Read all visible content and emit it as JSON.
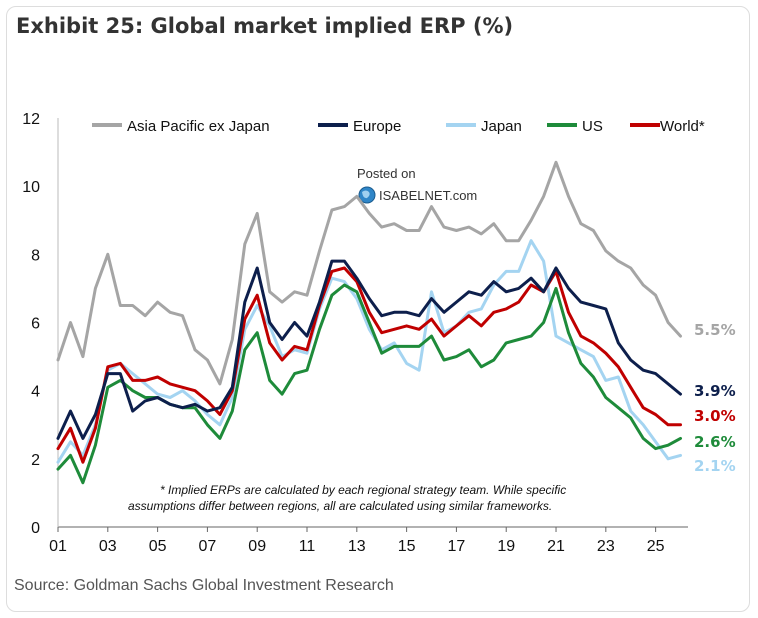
{
  "title": "Exhibit 25: Global market implied ERP (%)",
  "source": "Source: Goldman Sachs Global Investment Research",
  "watermark": {
    "line1": "Posted on",
    "line2": "ISABELNET.com"
  },
  "footnote": {
    "line1": "* Implied ERPs are calculated by each regional strategy team. While specific",
    "line2": "assumptions differ between regions, all are calculated using similar frameworks."
  },
  "chart_data": {
    "type": "line",
    "title": "Global market implied ERP (%)",
    "xlabel": "",
    "ylabel": "",
    "xlim": [
      2001,
      2026.3
    ],
    "ylim": [
      0,
      12
    ],
    "y_ticks": [
      0,
      2,
      4,
      6,
      8,
      10,
      12
    ],
    "x_ticks": [
      {
        "value": 2001,
        "label": "01"
      },
      {
        "value": 2003,
        "label": "03"
      },
      {
        "value": 2005,
        "label": "05"
      },
      {
        "value": 2007,
        "label": "07"
      },
      {
        "value": 2009,
        "label": "09"
      },
      {
        "value": 2011,
        "label": "11"
      },
      {
        "value": 2013,
        "label": "13"
      },
      {
        "value": 2015,
        "label": "15"
      },
      {
        "value": 2017,
        "label": "17"
      },
      {
        "value": 2019,
        "label": "19"
      },
      {
        "value": 2021,
        "label": "21"
      },
      {
        "value": 2023,
        "label": "23"
      },
      {
        "value": 2025,
        "label": "25"
      }
    ],
    "x": [
      2001.0,
      2001.5,
      2002.0,
      2002.5,
      2003.0,
      2003.5,
      2004.0,
      2004.5,
      2005.0,
      2005.5,
      2006.0,
      2006.5,
      2007.0,
      2007.5,
      2008.0,
      2008.5,
      2009.0,
      2009.5,
      2010.0,
      2010.5,
      2011.0,
      2011.5,
      2012.0,
      2012.5,
      2013.0,
      2013.5,
      2014.0,
      2014.5,
      2015.0,
      2015.5,
      2016.0,
      2016.5,
      2017.0,
      2017.5,
      2018.0,
      2018.5,
      2019.0,
      2019.5,
      2020.0,
      2020.5,
      2021.0,
      2021.5,
      2022.0,
      2022.5,
      2023.0,
      2023.5,
      2024.0,
      2024.5,
      2025.0,
      2025.5,
      2026.0
    ],
    "series": [
      {
        "name": "Asia Pacific ex Japan",
        "color": "#a5a5a5",
        "end_label": "5.5%",
        "values": [
          4.9,
          6.0,
          5.0,
          7.0,
          8.0,
          6.5,
          6.5,
          6.2,
          6.6,
          6.3,
          6.2,
          5.2,
          4.9,
          4.2,
          5.5,
          8.3,
          9.2,
          6.9,
          6.6,
          6.9,
          6.8,
          8.1,
          9.3,
          9.4,
          9.7,
          9.2,
          8.8,
          8.9,
          8.7,
          8.7,
          9.4,
          8.8,
          8.7,
          8.8,
          8.6,
          8.9,
          8.4,
          8.4,
          9.0,
          9.7,
          10.7,
          9.7,
          8.9,
          8.7,
          8.1,
          7.8,
          7.6,
          7.1,
          6.8,
          6.0,
          5.6
        ]
      },
      {
        "name": "Europe",
        "color": "#0d1f4c",
        "end_label": "3.9%",
        "values": [
          2.6,
          3.4,
          2.6,
          3.3,
          4.5,
          4.5,
          3.4,
          3.7,
          3.8,
          3.6,
          3.5,
          3.6,
          3.4,
          3.5,
          4.1,
          6.6,
          7.6,
          6.0,
          5.5,
          6.0,
          5.6,
          6.6,
          7.8,
          7.8,
          7.3,
          6.7,
          6.2,
          6.3,
          6.3,
          6.2,
          6.7,
          6.3,
          6.6,
          6.9,
          6.8,
          7.2,
          6.9,
          7.0,
          7.3,
          6.9,
          7.6,
          7.0,
          6.6,
          6.5,
          6.4,
          5.4,
          4.9,
          4.6,
          4.5,
          4.2,
          3.9
        ]
      },
      {
        "name": "Japan",
        "color": "#a4d4f1",
        "end_label": "2.1%",
        "values": [
          1.9,
          2.5,
          2.1,
          3.0,
          4.6,
          4.8,
          4.5,
          4.2,
          3.9,
          3.8,
          4.0,
          3.7,
          3.3,
          3.0,
          3.8,
          5.8,
          6.5,
          5.9,
          5.0,
          5.2,
          5.1,
          6.4,
          7.3,
          7.2,
          6.7,
          5.8,
          5.2,
          5.4,
          4.8,
          4.6,
          6.9,
          5.7,
          5.9,
          6.3,
          6.4,
          7.1,
          7.5,
          7.5,
          8.4,
          7.8,
          5.6,
          5.4,
          5.2,
          5.0,
          4.3,
          4.4,
          3.4,
          3.0,
          2.5,
          2.0,
          2.1
        ]
      },
      {
        "name": "US",
        "color": "#1e8b3a",
        "end_label": "2.6%",
        "values": [
          1.7,
          2.1,
          1.3,
          2.4,
          4.1,
          4.3,
          4.0,
          3.8,
          3.8,
          3.6,
          3.5,
          3.5,
          3.0,
          2.6,
          3.4,
          5.2,
          5.7,
          4.3,
          3.9,
          4.5,
          4.6,
          5.8,
          6.8,
          7.1,
          6.9,
          6.0,
          5.1,
          5.3,
          5.3,
          5.3,
          5.6,
          4.9,
          5.0,
          5.2,
          4.7,
          4.9,
          5.4,
          5.5,
          5.6,
          6.0,
          7.0,
          5.7,
          4.8,
          4.4,
          3.8,
          3.5,
          3.2,
          2.6,
          2.3,
          2.4,
          2.6
        ]
      },
      {
        "name": "World*",
        "color": "#c00000",
        "end_label": "3.0%",
        "values": [
          2.3,
          2.9,
          1.9,
          2.9,
          4.7,
          4.8,
          4.3,
          4.3,
          4.4,
          4.2,
          4.1,
          4.0,
          3.7,
          3.3,
          4.0,
          6.1,
          6.8,
          5.4,
          4.9,
          5.3,
          5.2,
          6.5,
          7.5,
          7.6,
          7.2,
          6.3,
          5.7,
          5.8,
          5.9,
          5.8,
          6.1,
          5.6,
          5.9,
          6.2,
          5.9,
          6.3,
          6.4,
          6.6,
          7.1,
          6.9,
          7.5,
          6.3,
          5.6,
          5.4,
          5.1,
          4.7,
          4.1,
          3.5,
          3.3,
          3.0,
          3.0
        ]
      }
    ]
  }
}
